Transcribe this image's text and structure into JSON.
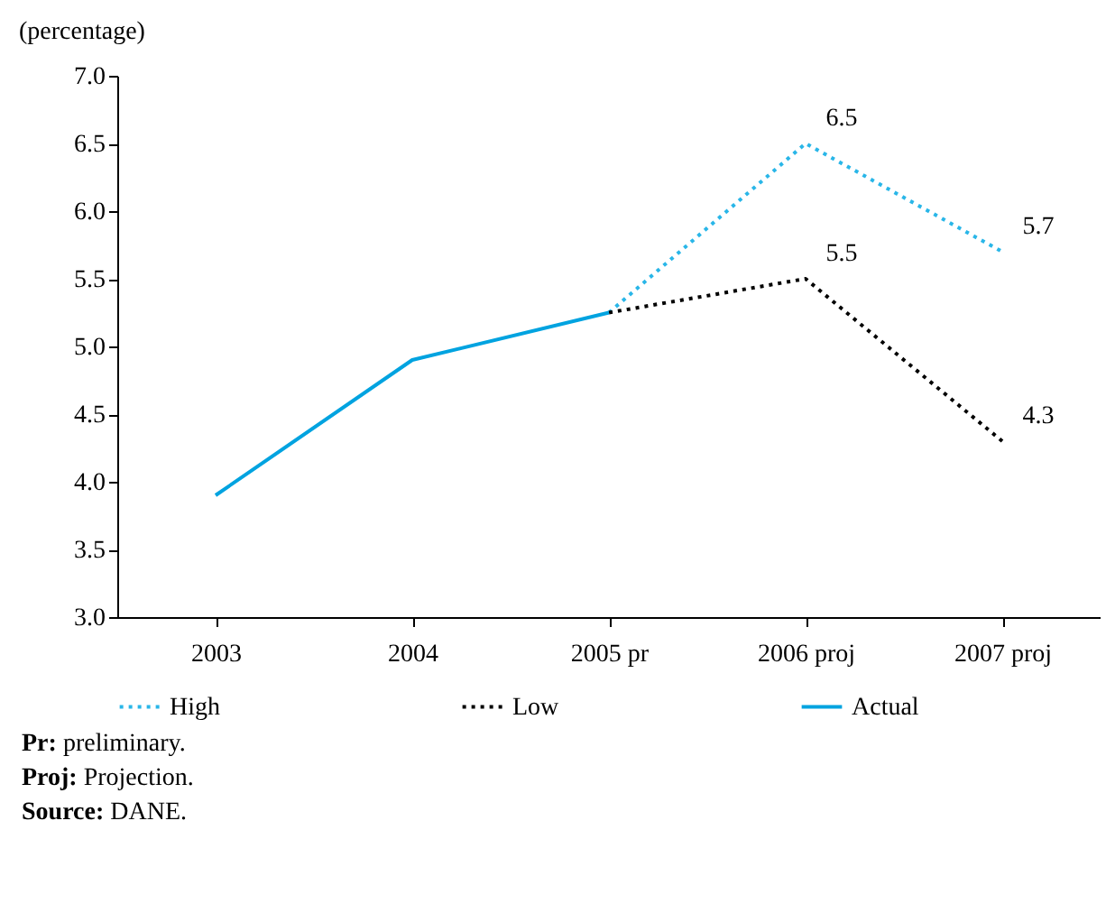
{
  "chart_data": {
    "type": "line",
    "ylabel": "(percentage)",
    "categories": [
      "2003",
      "2004",
      "2005 pr",
      "2006 proj",
      "2007 proj"
    ],
    "series": [
      {
        "name": "High",
        "color": "#29b6e8",
        "line_style": "dotted",
        "values": [
          null,
          null,
          5.25,
          6.5,
          5.7
        ],
        "value_labels": [
          null,
          null,
          null,
          "6.5",
          "5.7"
        ]
      },
      {
        "name": "Low",
        "color": "#000000",
        "line_style": "dotted",
        "values": [
          null,
          null,
          5.25,
          5.5,
          4.3
        ],
        "value_labels": [
          null,
          null,
          null,
          "5.5",
          "4.3"
        ]
      },
      {
        "name": "Actual",
        "color": "#00a3e0",
        "line_style": "solid",
        "values": [
          3.9,
          4.9,
          5.25,
          null,
          null
        ]
      }
    ],
    "ylim": [
      3,
      7
    ],
    "yticks": [
      {
        "value": 3,
        "label": "3.0"
      },
      {
        "value": 3.5,
        "label": "3.5"
      },
      {
        "value": 4,
        "label": "4.0"
      },
      {
        "value": 4.5,
        "label": "4.5"
      },
      {
        "value": 5,
        "label": "5.0"
      },
      {
        "value": 5.5,
        "label": "5.5"
      },
      {
        "value": 6,
        "label": "6.0"
      },
      {
        "value": 6.5,
        "label": "6.5"
      },
      {
        "value": 7,
        "label": "7.0"
      }
    ],
    "grid": false,
    "legend": "bottom",
    "marker": "none",
    "annotations": [
      "Pr: preliminary.",
      "Proj: Projection.",
      "Source: DANE."
    ]
  }
}
